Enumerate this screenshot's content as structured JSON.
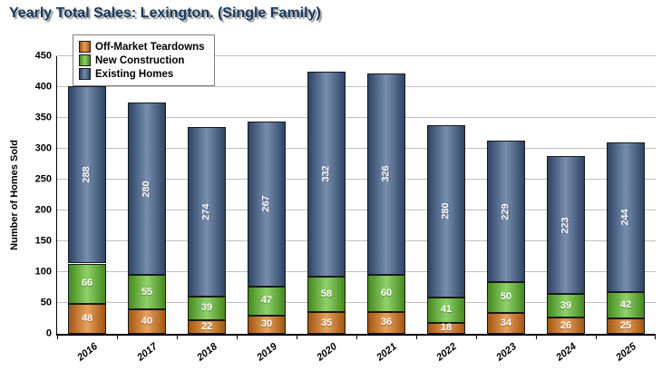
{
  "title": "Yearly Total Sales: Lexington. (Single Family)",
  "chart_data": {
    "type": "bar",
    "stacked": true,
    "title": "Yearly Total Sales: Lexington. (Single Family)",
    "xlabel": "",
    "ylabel": "Number of Homes Sold",
    "ylim": [
      0,
      450
    ],
    "ytick_step": 50,
    "grid": true,
    "legend_position": "top-left",
    "categories": [
      "2016",
      "2017",
      "2018",
      "2019",
      "2020",
      "2021",
      "2022",
      "2023",
      "2024",
      "2025"
    ],
    "series": [
      {
        "name": "Off-Market Teardowns",
        "color": "#E07818",
        "values": [
          48,
          40,
          22,
          30,
          35,
          36,
          18,
          34,
          26,
          25
        ]
      },
      {
        "name": "New Construction",
        "color": "#5FBE2A",
        "values": [
          66,
          55,
          39,
          47,
          58,
          60,
          41,
          50,
          39,
          42
        ]
      },
      {
        "name": "Existing Homes",
        "color": "#3F5E8C",
        "values": [
          288,
          280,
          274,
          267,
          332,
          326,
          280,
          229,
          223,
          244
        ]
      }
    ],
    "totals": [
      402,
      375,
      335,
      344,
      425,
      422,
      339,
      313,
      288,
      311
    ]
  },
  "colors": {
    "title_text": "#17375E",
    "gridline": "#bfbfbf",
    "value_label": "#ffffff"
  }
}
